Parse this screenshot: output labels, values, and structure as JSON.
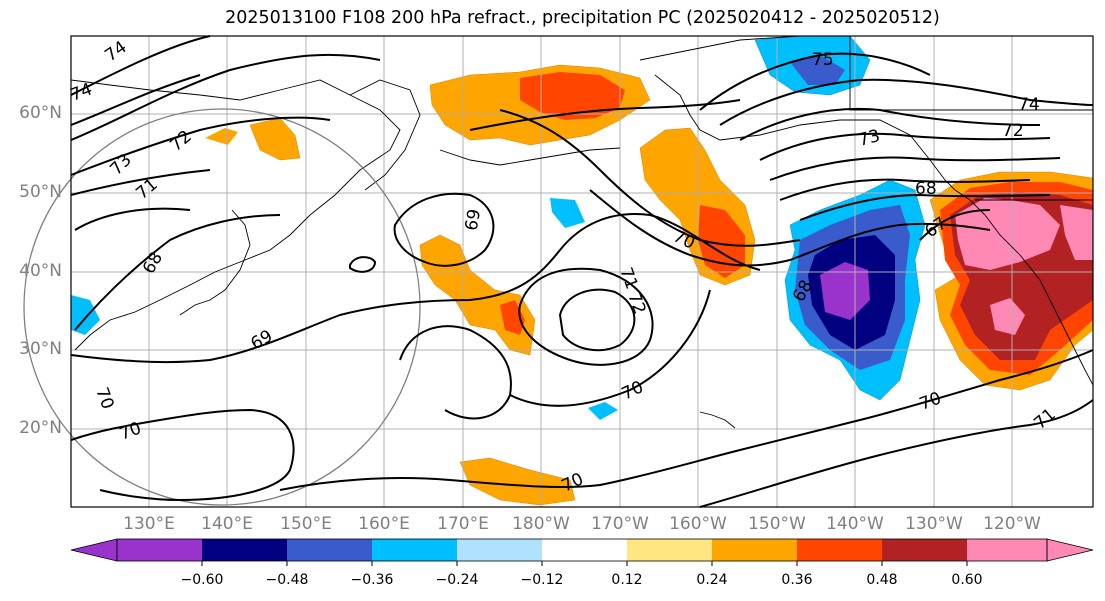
{
  "title": "2025013100 F108 200 hPa refract., precipitation PC (2025020412 - 2025020512)",
  "lat_labels": [
    "60°N",
    "50°N",
    "40°N",
    "30°N",
    "20°N"
  ],
  "lon_labels": [
    "130°E",
    "140°E",
    "150°E",
    "160°E",
    "170°E",
    "180°W",
    "170°W",
    "160°W",
    "150°W",
    "140°W",
    "130°W",
    "120°W"
  ],
  "colorbar": {
    "labels": [
      "−0.60",
      "−0.48",
      "−0.36",
      "−0.24",
      "−0.12",
      "0.12",
      "0.24",
      "0.36",
      "0.48",
      "0.60"
    ],
    "colors": [
      "#9933cc",
      "#000080",
      "#3a5bcc",
      "#00bfff",
      "#b0e2ff",
      "#ffffff",
      "#ffe680",
      "#ffa500",
      "#ff4500",
      "#b22222",
      "#ff88b4"
    ]
  },
  "contour_labels": [
    "74",
    "74",
    "72",
    "73",
    "71",
    "68",
    "69",
    "70",
    "70",
    "69",
    "71",
    "72",
    "70",
    "70",
    "70",
    "75",
    "74",
    "72",
    "73",
    "68",
    "67",
    "68",
    "70",
    "71"
  ],
  "colors": {
    "pink": "#ff88b4",
    "darkred": "#b22222",
    "red": "#ff4500",
    "orange": "#ffa500",
    "yellow": "#ffe680",
    "lightblue": "#b0e2ff",
    "deepskyblue": "#00bfff",
    "royalblue": "#3a5bcc",
    "navy": "#000080",
    "purple": "#9933cc",
    "grid": "#b0b0b0"
  }
}
